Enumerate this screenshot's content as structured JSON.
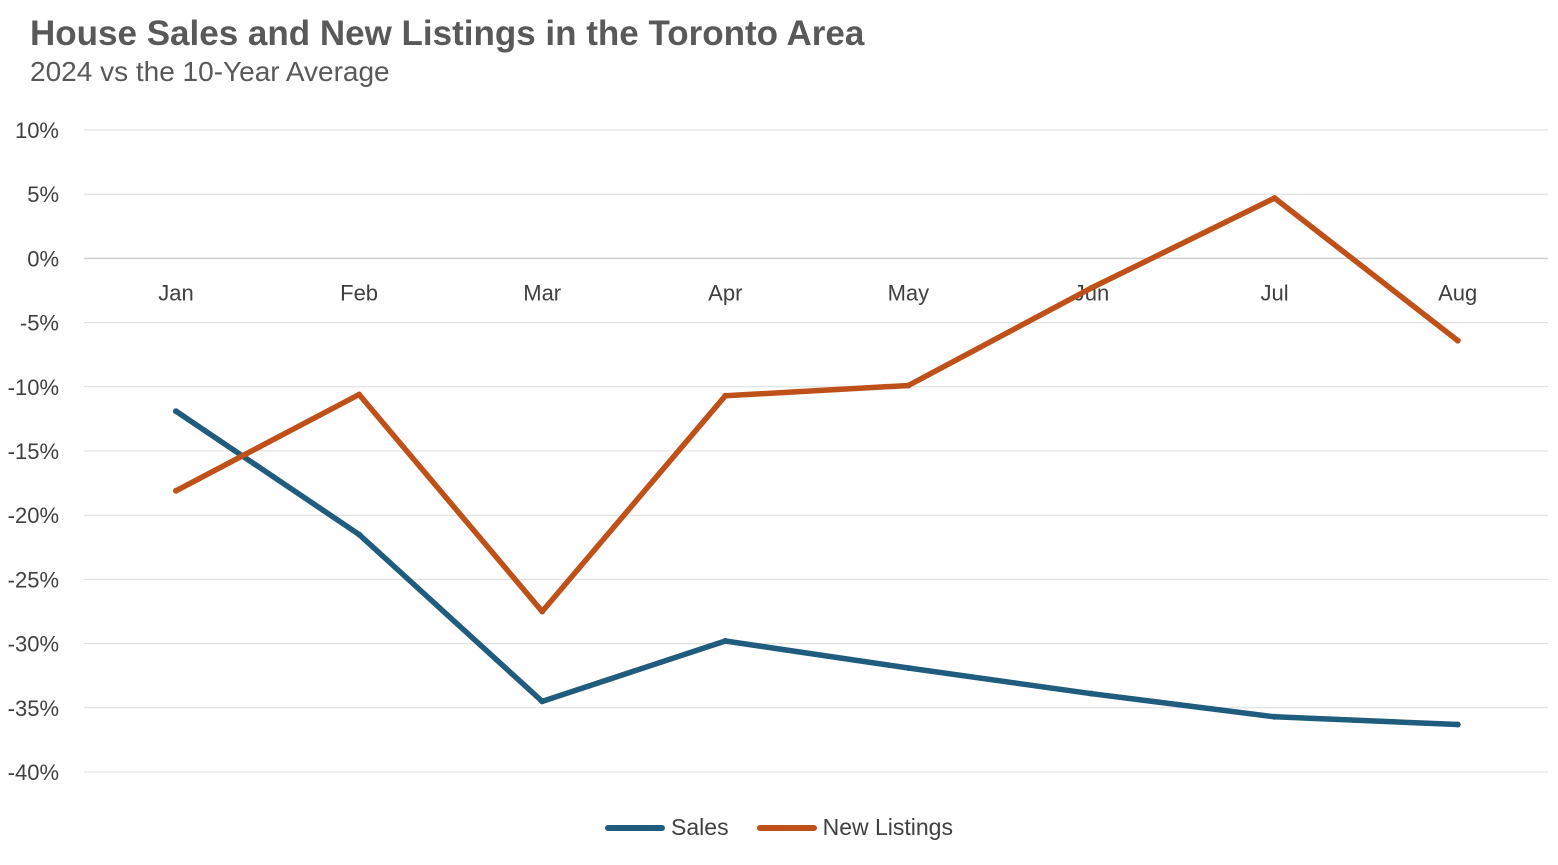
{
  "chart_data": {
    "type": "line",
    "title": "House Sales and New Listings in the Toronto Area",
    "subtitle": "2024 vs the 10-Year Average",
    "xlabel": "",
    "ylabel": "",
    "categories": [
      "Jan",
      "Feb",
      "Mar",
      "Apr",
      "May",
      "Jun",
      "Jul",
      "Aug"
    ],
    "ylim": [
      -40,
      10
    ],
    "yticks": [
      10,
      5,
      0,
      -5,
      -10,
      -15,
      -20,
      -25,
      -30,
      -35,
      -40
    ],
    "ytick_labels": [
      "10%",
      "5%",
      "0%",
      "-5%",
      "-10%",
      "-15%",
      "-20%",
      "-25%",
      "-30%",
      "-35%",
      "-40%"
    ],
    "grid": true,
    "legend_position": "bottom",
    "series": [
      {
        "name": "Sales",
        "color": "#1f5c7e",
        "values": [
          -11.9,
          -21.5,
          -34.5,
          -29.8,
          -31.9,
          -33.9,
          -35.7,
          -36.3
        ]
      },
      {
        "name": "New Listings",
        "color": "#bf5018",
        "values": [
          -18.1,
          -10.6,
          -27.5,
          -10.7,
          -9.9,
          -2.3,
          4.7,
          -6.4
        ]
      }
    ]
  }
}
